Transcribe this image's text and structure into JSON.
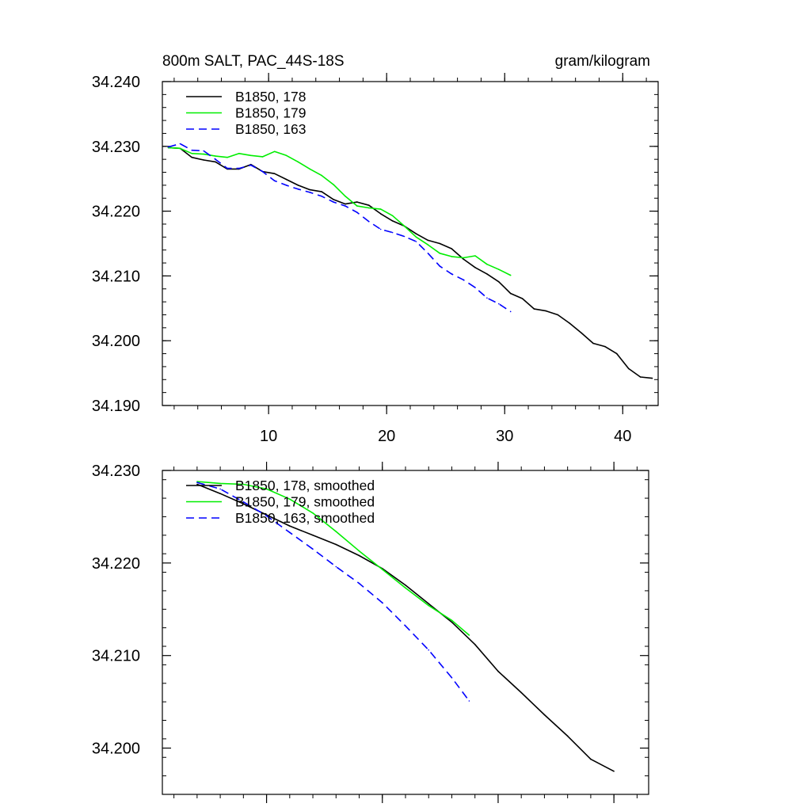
{
  "chart_data": [
    {
      "type": "line",
      "title": "800m SALT, PAC_44S-18S",
      "units": "gram/kilogram",
      "xlim": [
        1,
        43
      ],
      "ylim": [
        34.19,
        34.24
      ],
      "xticks": [
        10,
        20,
        30,
        40
      ],
      "xtick_labels": [
        "10",
        "20",
        "30",
        "40"
      ],
      "yticks": [
        34.19,
        34.2,
        34.21,
        34.22,
        34.23,
        34.24
      ],
      "ytick_labels": [
        "34.190",
        "34.200",
        "34.210",
        "34.220",
        "34.230",
        "34.240"
      ],
      "legend_position": "top-left",
      "series": [
        {
          "name": "B1850, 178",
          "color": "#000000",
          "dash": "solid",
          "x": [
            1.5,
            2.5,
            3.5,
            4.5,
            5.5,
            6.5,
            7.5,
            8.5,
            9.5,
            10.5,
            11.5,
            12.5,
            13.5,
            14.5,
            15.5,
            16.5,
            17.5,
            18.5,
            19.5,
            20.5,
            21.5,
            22.5,
            23.5,
            24.5,
            25.5,
            26.5,
            27.5,
            28.5,
            29.5,
            30.5,
            31.5,
            32.5,
            33.5,
            34.5,
            35.5,
            36.5,
            37.5,
            38.5,
            39.5,
            40.5,
            41.5,
            42.5
          ],
          "values": [
            34.2298,
            34.2297,
            34.2283,
            34.2279,
            34.2276,
            34.2265,
            34.2265,
            34.2272,
            34.2261,
            34.2258,
            34.2249,
            34.224,
            34.2233,
            34.223,
            34.2218,
            34.2211,
            34.2214,
            34.2209,
            34.2196,
            34.2185,
            34.2177,
            34.2165,
            34.2155,
            34.215,
            34.2142,
            34.2126,
            34.2113,
            34.2103,
            34.2091,
            34.2073,
            34.2065,
            34.2049,
            34.2046,
            34.204,
            34.2027,
            34.2012,
            34.1996,
            34.1991,
            34.198,
            34.1957,
            34.1944,
            34.1942
          ]
        },
        {
          "name": "B1850, 179",
          "color": "#00ee00",
          "dash": "solid",
          "x": [
            1.5,
            2.5,
            3.5,
            4.5,
            5.5,
            6.5,
            7.5,
            8.5,
            9.5,
            10.5,
            11.5,
            12.5,
            13.5,
            14.5,
            15.5,
            16.5,
            17.5,
            18.5,
            19.5,
            20.5,
            21.5,
            22.5,
            23.5,
            24.5,
            25.5,
            26.5,
            27.5,
            28.5,
            29.5,
            30.5
          ],
          "values": [
            34.2298,
            34.2297,
            34.2289,
            34.2288,
            34.2285,
            34.2283,
            34.2289,
            34.2286,
            34.2284,
            34.2292,
            34.2286,
            34.2276,
            34.2265,
            34.2255,
            34.2241,
            34.2223,
            34.2208,
            34.2205,
            34.2203,
            34.2193,
            34.2177,
            34.216,
            34.2148,
            34.2135,
            34.213,
            34.2128,
            34.2131,
            34.2118,
            34.211,
            34.2101
          ]
        },
        {
          "name": "B1850, 163",
          "color": "#0000ff",
          "dash": "dashed",
          "x": [
            1.5,
            2.5,
            3.5,
            4.5,
            5.5,
            6.5,
            7.5,
            8.5,
            9.5,
            10.5,
            11.5,
            12.5,
            13.5,
            14.5,
            15.5,
            16.5,
            17.5,
            18.5,
            19.5,
            20.5,
            21.5,
            22.5,
            23.5,
            24.5,
            25.5,
            26.5,
            27.5,
            28.5,
            29.5,
            30.5
          ],
          "values": [
            34.2299,
            34.2304,
            34.2294,
            34.2293,
            34.228,
            34.2266,
            34.2266,
            34.2271,
            34.2261,
            34.2247,
            34.224,
            34.2234,
            34.2229,
            34.2223,
            34.2214,
            34.2208,
            34.2198,
            34.2184,
            34.2172,
            34.2167,
            34.2161,
            34.2153,
            34.2135,
            34.2115,
            34.2103,
            34.2094,
            34.2082,
            34.2066,
            34.2057,
            34.2045
          ]
        }
      ]
    },
    {
      "type": "line",
      "title": "",
      "xlim": [
        1,
        43
      ],
      "ylim": [
        34.195,
        34.23
      ],
      "xticks": [
        10,
        20,
        30,
        40
      ],
      "xtick_labels": [],
      "yticks": [
        34.2,
        34.21,
        34.22,
        34.23
      ],
      "ytick_labels": [
        "34.200",
        "34.210",
        "34.220",
        "34.230"
      ],
      "legend_position": "top-left",
      "series": [
        {
          "name": "B1850, 178, smoothed",
          "color": "#000000",
          "dash": "solid",
          "x": [
            4,
            6,
            8,
            10,
            12,
            14,
            16,
            18,
            20,
            22,
            24,
            26,
            28,
            30,
            32,
            34,
            36,
            38,
            40
          ],
          "values": [
            34.2285,
            34.2275,
            34.2264,
            34.2252,
            34.224,
            34.223,
            34.222,
            34.2208,
            34.2194,
            34.2176,
            34.2156,
            34.2136,
            34.2112,
            34.2083,
            34.206,
            34.2036,
            34.2013,
            34.1988,
            34.1975
          ]
        },
        {
          "name": "B1850, 179, smoothed",
          "color": "#00ee00",
          "dash": "solid",
          "x": [
            4,
            6,
            8,
            10,
            12,
            14,
            16,
            18,
            20,
            22,
            24,
            26,
            27.5
          ],
          "values": [
            34.2288,
            34.2286,
            34.2285,
            34.228,
            34.2269,
            34.2254,
            34.2234,
            34.2213,
            34.2193,
            34.2173,
            34.2154,
            34.2138,
            34.2122
          ]
        },
        {
          "name": "B1850, 163, smoothed",
          "color": "#0000ff",
          "dash": "dashed",
          "x": [
            4,
            6,
            8,
            10,
            12,
            14,
            16,
            18,
            20,
            22,
            24,
            26,
            27.5
          ],
          "values": [
            34.2287,
            34.228,
            34.2266,
            34.2251,
            34.2233,
            34.2215,
            34.2196,
            34.2178,
            34.2157,
            34.2132,
            34.2106,
            34.2076,
            34.2051
          ]
        }
      ]
    }
  ]
}
